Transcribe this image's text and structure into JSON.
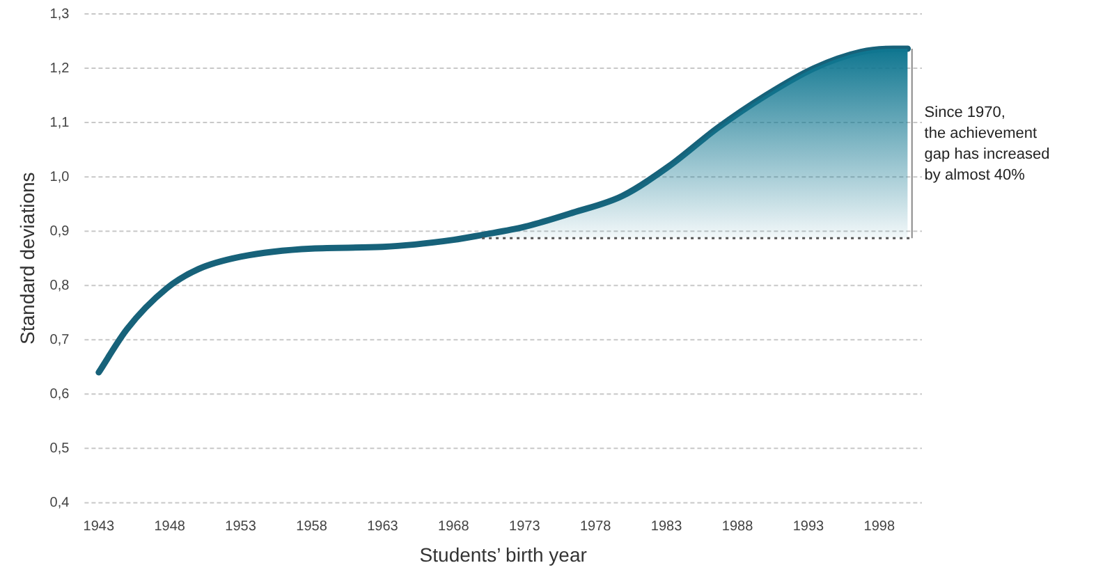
{
  "chart_data": {
    "type": "line",
    "xlabel": "Students’ birth year",
    "ylabel": "Standard deviations",
    "annotations": [
      {
        "text": "Since 1970,\nthe achievement\ngap has increased\nby almost 40%",
        "x": 2000,
        "y": 1.06
      }
    ],
    "xlim": [
      1942,
      2001
    ],
    "xticks": [
      1943,
      1948,
      1953,
      1958,
      1963,
      1968,
      1973,
      1978,
      1983,
      1988,
      1993,
      1998
    ],
    "ylim": [
      0.4,
      1.3
    ],
    "yticks": [
      {
        "value": 0.4,
        "label": "0,4"
      },
      {
        "value": 0.5,
        "label": "0,5"
      },
      {
        "value": 0.6,
        "label": "0,6"
      },
      {
        "value": 0.7,
        "label": "0,7"
      },
      {
        "value": 0.8,
        "label": "0,8"
      },
      {
        "value": 0.9,
        "label": "0,9"
      },
      {
        "value": 1.0,
        "label": "1,0"
      },
      {
        "value": 1.1,
        "label": "1,1"
      },
      {
        "value": 1.2,
        "label": "1,2"
      },
      {
        "value": 1.3,
        "label": "1,3"
      }
    ],
    "grid": "y",
    "legend": false,
    "marker": "none",
    "line_style": "solid",
    "ref_lines": [
      {
        "axis": "y",
        "value": 0.887,
        "color": "#555555",
        "line_style": "dotted"
      },
      {
        "axis": "x",
        "value": 2000.3,
        "color": "#888888",
        "line_style": "solid"
      }
    ],
    "series": [
      {
        "type": "area",
        "color": "#0f7690",
        "x": [
          1970,
          1973,
          1976.4,
          1979.9,
          1983.2,
          1986.6,
          1990,
          1993.4,
          1996.7,
          1999,
          2000
        ],
        "values": [
          0.893,
          0.908,
          0.934,
          0.965,
          1.02,
          1.09,
          1.15,
          1.2,
          1.23,
          1.236,
          1.236
        ]
      },
      {
        "type": "line",
        "color": "#17627a",
        "x": [
          1943,
          1945,
          1947.8,
          1950,
          1953,
          1958,
          1963,
          1968,
          1970,
          1973,
          1976.4,
          1979.9,
          1983.2,
          1986.6,
          1990,
          1993.4,
          1996.7,
          1999,
          2000
        ],
        "values": [
          0.64,
          0.72,
          0.795,
          0.83,
          0.853,
          0.868,
          0.871,
          0.884,
          0.893,
          0.908,
          0.934,
          0.965,
          1.02,
          1.09,
          1.15,
          1.2,
          1.23,
          1.236,
          1.236
        ]
      }
    ]
  }
}
